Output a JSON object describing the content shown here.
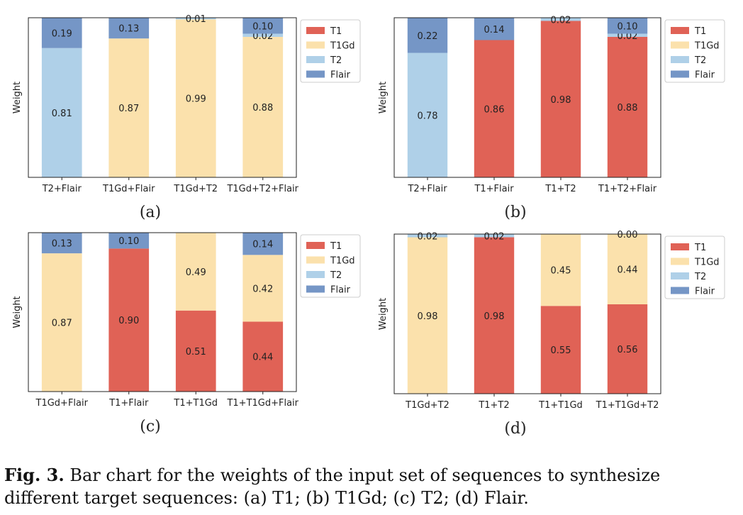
{
  "colors": {
    "T1": "#e06256",
    "T1Gd": "#fbe1ac",
    "T2": "#afd0e8",
    "Flair": "#7596c6"
  },
  "legend_entries": [
    "T1",
    "T1Gd",
    "T2",
    "Flair"
  ],
  "caption": {
    "label": "Fig. 3.",
    "text": " Bar chart for the weights of the input set of sequences to synthesize different target sequences: (a) T1; (b) T1Gd; (c) T2; (d) Flair."
  },
  "chart_data": [
    {
      "type": "bar",
      "stacked": true,
      "panel_label": "(a)",
      "ylabel": "Weight",
      "ylim": [
        0,
        1
      ],
      "legend_position": "upper-right-outside",
      "categories": [
        "T2+Flair",
        "T1Gd+Flair",
        "T1Gd+T2",
        "T1Gd+T2+Flair"
      ],
      "series": [
        {
          "name": "T1",
          "values": [
            0,
            0,
            0,
            0
          ]
        },
        {
          "name": "T1Gd",
          "values": [
            0,
            0.87,
            0.99,
            0.88
          ]
        },
        {
          "name": "T2",
          "values": [
            0.81,
            0,
            0.01,
            0.02
          ]
        },
        {
          "name": "Flair",
          "values": [
            0.19,
            0.13,
            0,
            0.1
          ]
        }
      ]
    },
    {
      "type": "bar",
      "stacked": true,
      "panel_label": "(b)",
      "ylabel": "Weight",
      "ylim": [
        0,
        1
      ],
      "legend_position": "upper-right-outside",
      "categories": [
        "T2+Flair",
        "T1+Flair",
        "T1+T2",
        "T1+T2+Flair"
      ],
      "series": [
        {
          "name": "T1",
          "values": [
            0,
            0.86,
            0.98,
            0.88
          ]
        },
        {
          "name": "T1Gd",
          "values": [
            0,
            0,
            0,
            0
          ]
        },
        {
          "name": "T2",
          "values": [
            0.78,
            0,
            0.02,
            0.02
          ]
        },
        {
          "name": "Flair",
          "values": [
            0.22,
            0.14,
            0,
            0.1
          ]
        }
      ]
    },
    {
      "type": "bar",
      "stacked": true,
      "panel_label": "(c)",
      "ylabel": "Weight",
      "ylim": [
        0,
        1
      ],
      "legend_position": "upper-right-outside",
      "categories": [
        "T1Gd+Flair",
        "T1+Flair",
        "T1+T1Gd",
        "T1+T1Gd+Flair"
      ],
      "series": [
        {
          "name": "T1",
          "values": [
            0,
            0.9,
            0.51,
            0.44
          ]
        },
        {
          "name": "T1Gd",
          "values": [
            0.87,
            0,
            0.49,
            0.42
          ]
        },
        {
          "name": "T2",
          "values": [
            0,
            0,
            0,
            0
          ]
        },
        {
          "name": "Flair",
          "values": [
            0.13,
            0.1,
            0,
            0.14
          ]
        }
      ]
    },
    {
      "type": "bar",
      "stacked": true,
      "panel_label": "(d)",
      "ylabel": "Weight",
      "ylim": [
        0,
        1
      ],
      "legend_position": "upper-right-outside",
      "categories": [
        "T1Gd+T2",
        "T1+T2",
        "T1+T1Gd",
        "T1+T1Gd+T2"
      ],
      "series": [
        {
          "name": "T1",
          "values": [
            0,
            0.98,
            0.55,
            0.56
          ]
        },
        {
          "name": "T1Gd",
          "values": [
            0.98,
            0,
            0.45,
            0.44
          ]
        },
        {
          "name": "T2",
          "values": [
            0.02,
            0.02,
            0,
            0.0
          ]
        },
        {
          "name": "Flair",
          "values": [
            0,
            0,
            0,
            0
          ]
        }
      ]
    }
  ]
}
